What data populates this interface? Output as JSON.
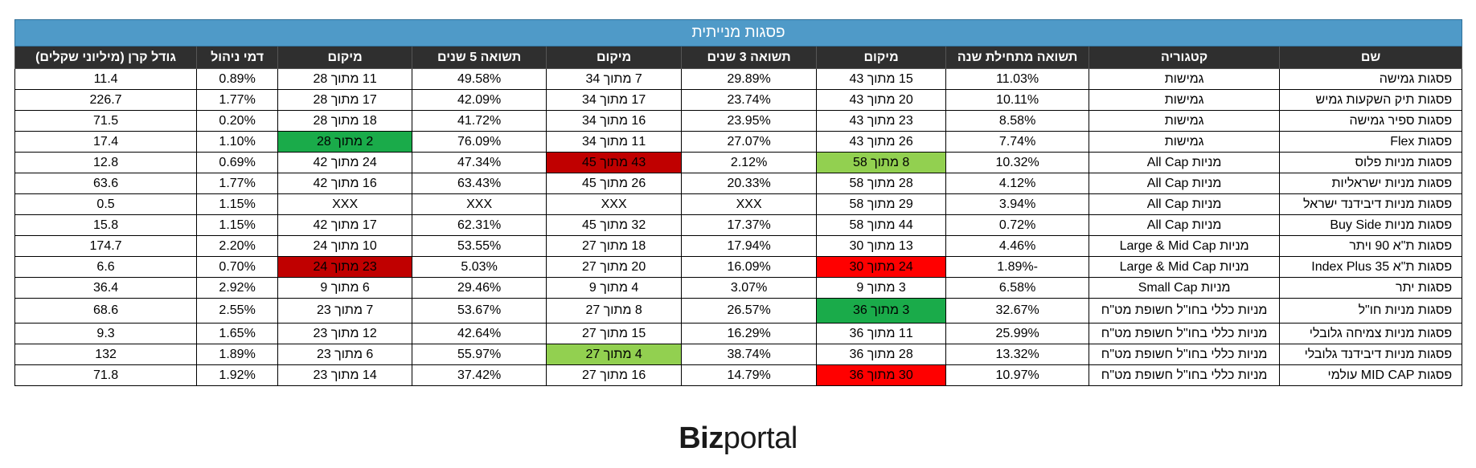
{
  "table": {
    "title": "פסגות מנייתית",
    "headers": [
      "שם",
      "קטגוריה",
      "תשואה מתחילת שנה",
      "מיקום",
      "תשואה 3 שנים",
      "מיקום",
      "תשואה 5 שנים",
      "מיקום",
      "דמי ניהול",
      "גודל קרן (מיליוני שקלים)"
    ],
    "rows": [
      [
        "פסגות גמישה",
        "גמישות",
        "11.03%",
        "15 מתוך 43",
        "29.89%",
        "7 מתוך 34",
        "49.58%",
        "11 מתוך 28",
        "0.89%",
        "11.4"
      ],
      [
        "פסגות תיק השקעות גמיש",
        "גמישות",
        "10.11%",
        "20 מתוך 43",
        "23.74%",
        "17 מתוך 34",
        "42.09%",
        "17 מתוך 28",
        "1.77%",
        "226.7"
      ],
      [
        "פסגות ספיר גמישה",
        "גמישות",
        "8.58%",
        "23 מתוך 43",
        "23.95%",
        "16 מתוך 34",
        "41.72%",
        "18 מתוך 28",
        "0.20%",
        "71.5"
      ],
      [
        "פסגות Flex",
        "גמישות",
        "7.74%",
        "26 מתוך 43",
        "27.07%",
        "11 מתוך 34",
        "76.09%",
        "2 מתוך 28",
        "1.10%",
        "17.4"
      ],
      [
        "פסגות מניות פלוס",
        "מניות All Cap",
        "10.32%",
        "8 מתוך 58",
        "2.12%",
        "43 מתוך 45",
        "47.34%",
        "24 מתוך 42",
        "0.69%",
        "12.8"
      ],
      [
        "פסגות מניות ישראליות",
        "מניות All Cap",
        "4.12%",
        "28 מתוך 58",
        "20.33%",
        "26 מתוך 45",
        "63.43%",
        "16 מתוך 42",
        "1.77%",
        "63.6"
      ],
      [
        "פסגות מניות דיבידנד ישראל",
        "מניות All Cap",
        "3.94%",
        "29 מתוך 58",
        "XXX",
        "XXX",
        "XXX",
        "XXX",
        "1.15%",
        "0.5"
      ],
      [
        "פסגות מניות Buy Side",
        "מניות All Cap",
        "0.72%",
        "44 מתוך 58",
        "17.37%",
        "32 מתוך 45",
        "62.31%",
        "17 מתוך 42",
        "1.15%",
        "15.8"
      ],
      [
        "פסגות ת\"א 90 ויתר",
        "מניות Large & Mid Cap",
        "4.46%",
        "13 מתוך 30",
        "17.94%",
        "18 מתוך 27",
        "53.55%",
        "10 מתוך 24",
        "2.20%",
        "174.7"
      ],
      [
        "פסגות ת\"א Index Plus 35",
        "מניות Large & Mid Cap",
        "-1.89%",
        "24 מתוך 30",
        "16.09%",
        "20 מתוך 27",
        "5.03%",
        "23 מתוך 24",
        "0.70%",
        "6.6"
      ],
      [
        "פסגות יתר",
        "מניות Small Cap",
        "6.58%",
        "3 מתוך 9",
        "3.07%",
        "4 מתוך 9",
        "29.46%",
        "6 מתוך 9",
        "2.92%",
        "36.4"
      ],
      [
        "פסגות מניות חו\"ל",
        "מניות כללי בחו\"ל חשופת מט\"ח",
        "32.67%",
        "3 מתוך 36",
        "26.57%",
        "8 מתוך 27",
        "53.67%",
        "7 מתוך 23",
        "2.55%",
        "68.6"
      ],
      [
        "פסגות מניות צמיחה גלובלי",
        "מניות כללי בחו\"ל חשופת מט\"ח",
        "25.99%",
        "11 מתוך 36",
        "16.29%",
        "15 מתוך 27",
        "42.64%",
        "12 מתוך 23",
        "1.65%",
        "9.3"
      ],
      [
        "פסגות מניות דיבידנד גלובלי",
        "מניות כללי בחו\"ל חשופת מט\"ח",
        "13.32%",
        "28 מתוך 36",
        "38.74%",
        "4 מתוך 27",
        "55.97%",
        "6 מתוך 23",
        "1.89%",
        "132"
      ],
      [
        "פסגות MID CAP עולמי",
        "מניות כללי בחו\"ל חשופת מט\"ח",
        "10.97%",
        "30 מתוך 36",
        "14.79%",
        "16 מתוך 27",
        "37.42%",
        "14 מתוך 23",
        "1.92%",
        "71.8"
      ]
    ],
    "highlights": [
      {
        "row": 3,
        "col": 7,
        "color": "#1aab4a"
      },
      {
        "row": 4,
        "col": 3,
        "color": "#92d050"
      },
      {
        "row": 4,
        "col": 5,
        "color": "#c00000"
      },
      {
        "row": 9,
        "col": 3,
        "color": "#ff0000"
      },
      {
        "row": 9,
        "col": 7,
        "color": "#c00000"
      },
      {
        "row": 11,
        "col": 3,
        "color": "#1aab4a"
      },
      {
        "row": 13,
        "col": 5,
        "color": "#92d050"
      },
      {
        "row": 14,
        "col": 3,
        "color": "#ff0000"
      }
    ]
  },
  "logo": {
    "part1": "Biz",
    "part2": "portal"
  }
}
